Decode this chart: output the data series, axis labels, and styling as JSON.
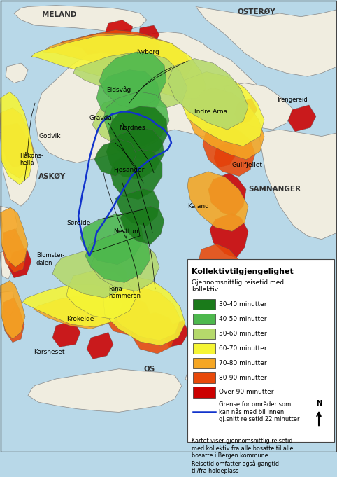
{
  "title": "Kollektivtilgjengelighet",
  "subtitle": "Gjennomsnittlig reisetid med\nkollektiv",
  "legend_items": [
    {
      "color": "#1a7a1a",
      "label": "30-40 minutter"
    },
    {
      "color": "#4db84d",
      "label": "40-50 minutter"
    },
    {
      "color": "#b5d96b",
      "label": "50-60 minutter"
    },
    {
      "color": "#f5f534",
      "label": "60-70 minutter"
    },
    {
      "color": "#f5a623",
      "label": "70-80 minutter"
    },
    {
      "color": "#e8490a",
      "label": "80-90 minutter"
    },
    {
      "color": "#cc0000",
      "label": "Over 90 minutter"
    }
  ],
  "blue_line_label": "Grense for områder som\nkan nås med bil innen\ngj.snitt reisetid 22 minutter",
  "footnote": "Kartet viser gjennomsnittlig reisetid\nmed kollektiv fra alle bosatte til alle\nbosatte i Bergen kommune.\nReisetid omfatter også gangtid\ntil/fra holdeplass",
  "figsize": [
    4.82,
    6.81
  ],
  "dpi": 100,
  "water_color": "#b8d8e8",
  "land_color": "#f0ede0",
  "border_color": "#888888"
}
